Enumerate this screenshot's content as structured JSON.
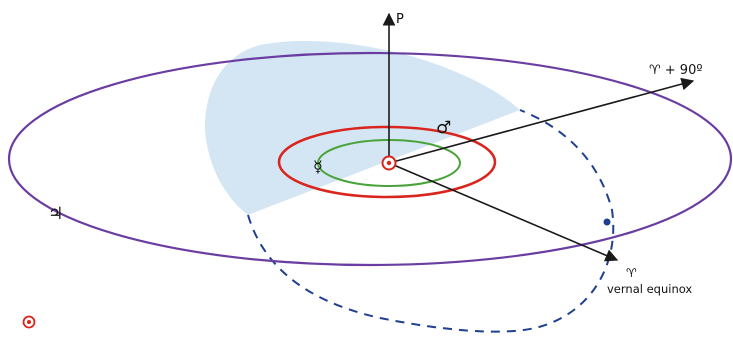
{
  "labels": {
    "pole": "P",
    "aries_plus_90": "♈ + 90º",
    "aries": "♈",
    "vernal_equinox": "vernal equinox",
    "mars": "♂",
    "mercury": "☿",
    "jupiter": "♃"
  },
  "colors": {
    "outer_orbit": "#6a3ea1",
    "red_orbit": "#d9251d",
    "green_orbit": "#4aa33a",
    "dashed_orbit": "#1f3f8f",
    "shaded_plane": "#cfe3f2",
    "sun": "#d9251d",
    "axes": "#1a1a1a"
  },
  "icons": {
    "sun": "sun-symbol-icon",
    "legend_sun": "sun-symbol-icon"
  }
}
